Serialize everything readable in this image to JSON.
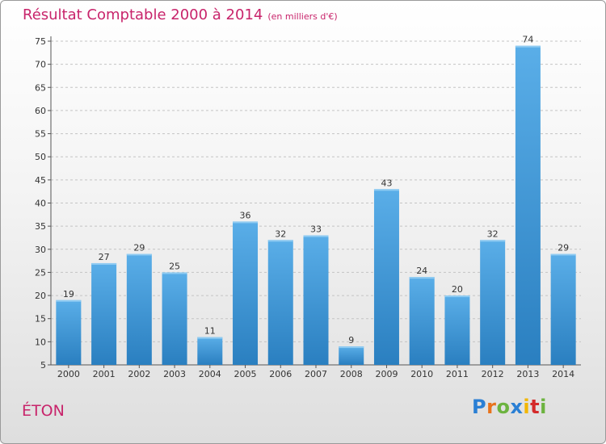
{
  "header": {
    "title": "Résultat Comptable 2000 à 2014",
    "subtitle": "(en milliers d'€)"
  },
  "footer": {
    "commune": "ÉTON",
    "logo_letters": [
      "P",
      "r",
      "o",
      "x",
      "i",
      "t",
      "i"
    ],
    "logo_colors": [
      "#2a7fd4",
      "#e8731c",
      "#6cb33f",
      "#2a7fd4",
      "#f2b600",
      "#d42a2a",
      "#6cb33f"
    ]
  },
  "colors": {
    "title": "#c8246b",
    "bar_top": "#5aaee8",
    "bar_bottom": "#2a7fc0"
  },
  "chart_data": {
    "type": "bar",
    "title": "Résultat Comptable 2000 à 2014",
    "subtitle": "(en milliers d'€)",
    "categories": [
      "2000",
      "2001",
      "2002",
      "2003",
      "2004",
      "2005",
      "2006",
      "2007",
      "2008",
      "2009",
      "2010",
      "2011",
      "2012",
      "2013",
      "2014"
    ],
    "values": [
      19,
      27,
      29,
      25,
      11,
      36,
      32,
      33,
      9,
      43,
      24,
      20,
      32,
      74,
      29
    ],
    "xlabel": "",
    "ylabel": "",
    "ylim": [
      5,
      75
    ],
    "yticks": [
      5,
      10,
      15,
      20,
      25,
      30,
      35,
      40,
      45,
      50,
      55,
      60,
      65,
      70,
      75
    ],
    "grid": true
  }
}
